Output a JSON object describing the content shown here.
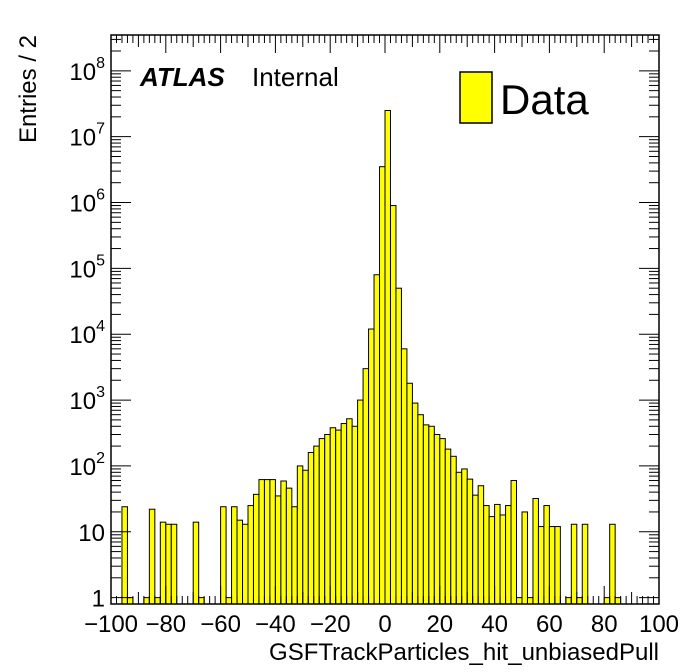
{
  "chart_data": {
    "type": "bar",
    "histogram": true,
    "bin_width": 2,
    "xlim": [
      -100,
      100
    ],
    "ylim": [
      0.8,
      350000000
    ],
    "yscale": "log",
    "xlabel": "GSFTrackParticles_hit_unbiasedPull",
    "ylabel": "Entries / 2",
    "atlas_label": "ATLAS",
    "atlas_sublabel": "Internal",
    "legend_position": "top-right",
    "x_ticks": [
      -100,
      -80,
      -60,
      -40,
      -20,
      0,
      20,
      40,
      60,
      80,
      100
    ],
    "x_tick_labels": [
      "−100",
      "−80",
      "−60",
      "−40",
      "−20",
      "0",
      "20",
      "40",
      "60",
      "80",
      "100"
    ],
    "y_ticks": [
      {
        "value": 1,
        "base": "1",
        "exp": ""
      },
      {
        "value": 10,
        "base": "10",
        "exp": ""
      },
      {
        "value": 100,
        "base": "10",
        "exp": "2"
      },
      {
        "value": 1000,
        "base": "10",
        "exp": "3"
      },
      {
        "value": 10000,
        "base": "10",
        "exp": "4"
      },
      {
        "value": 100000,
        "base": "10",
        "exp": "5"
      },
      {
        "value": 1000000,
        "base": "10",
        "exp": "6"
      },
      {
        "value": 10000000,
        "base": "10",
        "exp": "7"
      },
      {
        "value": 100000000,
        "base": "10",
        "exp": "8"
      }
    ],
    "series": [
      {
        "name": "Data",
        "color": "#ffff00",
        "edge_color": "#000000",
        "bins": [
          [
            -96,
            24
          ],
          [
            -94,
            1
          ],
          [
            -88,
            1
          ],
          [
            -86,
            22
          ],
          [
            -84,
            1
          ],
          [
            -82,
            14
          ],
          [
            -80,
            13
          ],
          [
            -78,
            13
          ],
          [
            -70,
            14
          ],
          [
            -68,
            1
          ],
          [
            -60,
            24
          ],
          [
            -58,
            1
          ],
          [
            -56,
            24
          ],
          [
            -54,
            15
          ],
          [
            -52,
            13
          ],
          [
            -50,
            25
          ],
          [
            -48,
            37
          ],
          [
            -46,
            62
          ],
          [
            -44,
            62
          ],
          [
            -42,
            62
          ],
          [
            -40,
            35
          ],
          [
            -38,
            59
          ],
          [
            -36,
            46
          ],
          [
            -34,
            24
          ],
          [
            -32,
            100
          ],
          [
            -30,
            86
          ],
          [
            -28,
            160
          ],
          [
            -26,
            200
          ],
          [
            -24,
            260
          ],
          [
            -22,
            300
          ],
          [
            -20,
            380
          ],
          [
            -18,
            350
          ],
          [
            -16,
            440
          ],
          [
            -14,
            520
          ],
          [
            -12,
            400
          ],
          [
            -10,
            1000
          ],
          [
            -8,
            3000
          ],
          [
            -6,
            12000
          ],
          [
            -4,
            80000
          ],
          [
            -2,
            3500000
          ],
          [
            0,
            25000000
          ],
          [
            2,
            900000
          ],
          [
            4,
            50000
          ],
          [
            6,
            6000
          ],
          [
            8,
            1800
          ],
          [
            10,
            900
          ],
          [
            12,
            600
          ],
          [
            14,
            420
          ],
          [
            16,
            400
          ],
          [
            18,
            300
          ],
          [
            20,
            260
          ],
          [
            22,
            180
          ],
          [
            24,
            140
          ],
          [
            26,
            80
          ],
          [
            28,
            90
          ],
          [
            30,
            63
          ],
          [
            32,
            36
          ],
          [
            34,
            50
          ],
          [
            36,
            25
          ],
          [
            38,
            17
          ],
          [
            40,
            26
          ],
          [
            42,
            18
          ],
          [
            44,
            25
          ],
          [
            46,
            60
          ],
          [
            48,
            1
          ],
          [
            50,
            20
          ],
          [
            52,
            1
          ],
          [
            54,
            32
          ],
          [
            56,
            12
          ],
          [
            58,
            25
          ],
          [
            60,
            12
          ],
          [
            62,
            12
          ],
          [
            66,
            1
          ],
          [
            68,
            13
          ],
          [
            70,
            1
          ],
          [
            72,
            13
          ],
          [
            80,
            1
          ],
          [
            82,
            13
          ],
          [
            84,
            1
          ]
        ]
      }
    ]
  }
}
